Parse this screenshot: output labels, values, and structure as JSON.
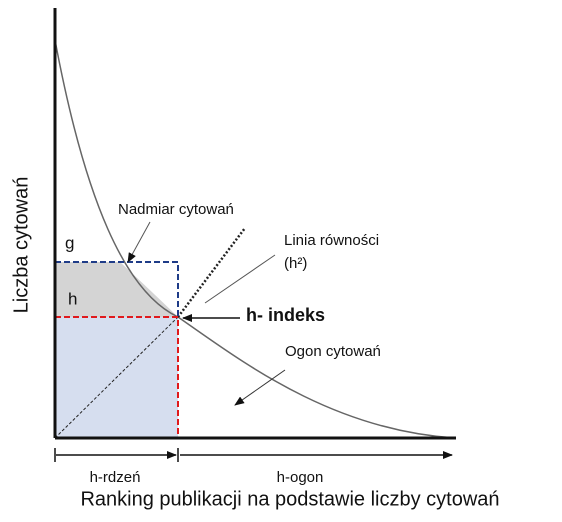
{
  "axes": {
    "y_label": "Liczba cytowań",
    "x_label": "Ranking publikacji na podstawie liczby cytowań"
  },
  "labels": {
    "excess": "Nadmiar cytowań",
    "g": "g",
    "h": "h",
    "equality_line": "Linia równości",
    "equality_formula": "(h²)",
    "h_index": "h- indeks",
    "tail": "Ogon cytowań",
    "h_core": "h-rdzeń",
    "h_tail": "h-ogon"
  }
}
